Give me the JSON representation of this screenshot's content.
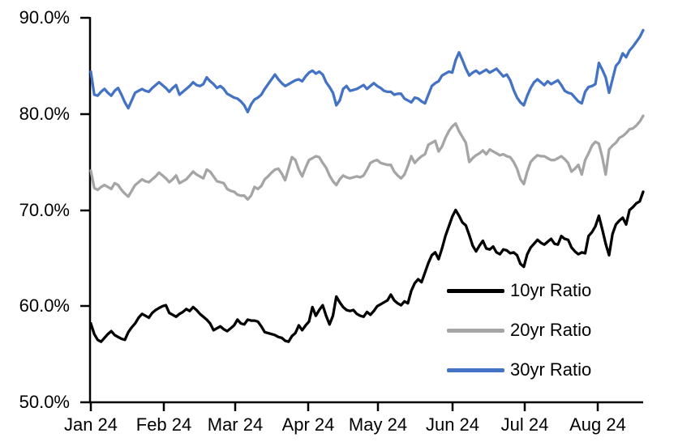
{
  "chart_data": {
    "type": "line",
    "title": "",
    "xlabel": "",
    "ylabel": "",
    "ylim": [
      50,
      90
    ],
    "y_tick_labels": [
      "90.0%",
      "80.0%",
      "70.0%",
      "60.0%",
      "50.0%"
    ],
    "x_tick_labels": [
      "Jan 24",
      "Feb 24",
      "Mar 24",
      "Apr 24",
      "May 24",
      "Jun 24",
      "Jul 24",
      "Aug 24"
    ],
    "grid": false,
    "legend_position": "inside-lower-right",
    "axis_color": "#000000",
    "series": [
      {
        "name": "10yr Ratio",
        "color": "#000000",
        "values": [
          58.2,
          57.1,
          56.5,
          56.3,
          56.7,
          57.1,
          57.4,
          57.0,
          56.8,
          56.6,
          56.5,
          57.3,
          57.8,
          58.2,
          58.8,
          59.2,
          59.0,
          58.8,
          59.3,
          59.6,
          59.8,
          60.0,
          60.1,
          59.3,
          59.1,
          58.9,
          59.2,
          59.4,
          59.7,
          59.5,
          59.9,
          59.6,
          59.2,
          58.9,
          58.6,
          58.2,
          57.5,
          57.7,
          57.9,
          57.6,
          57.4,
          57.7,
          58.0,
          58.6,
          58.2,
          58.1,
          58.6,
          58.5,
          58.5,
          58.4,
          57.9,
          57.3,
          57.2,
          57.1,
          57.0,
          56.8,
          56.7,
          56.4,
          56.3,
          56.9,
          57.2,
          58.0,
          57.5,
          58.0,
          58.4,
          59.9,
          59.0,
          59.6,
          60.1,
          59.0,
          58.1,
          59.0,
          61.0,
          60.4,
          59.9,
          59.6,
          59.5,
          59.6,
          59.2,
          59.0,
          58.9,
          59.4,
          59.1,
          59.5,
          60.0,
          60.2,
          60.4,
          60.6,
          61.2,
          60.6,
          60.3,
          60.1,
          60.5,
          60.3,
          61.6,
          62.4,
          62.8,
          62.5,
          63.5,
          64.5,
          65.3,
          65.6,
          64.9,
          66.0,
          67.3,
          68.3,
          69.3,
          70.0,
          69.4,
          68.7,
          68.4,
          67.4,
          66.3,
          65.7,
          66.3,
          66.8,
          66.0,
          65.9,
          66.2,
          65.6,
          65.4,
          65.9,
          65.8,
          65.5,
          65.6,
          65.3,
          64.4,
          64.1,
          65.4,
          66.1,
          66.5,
          66.9,
          66.6,
          66.4,
          66.7,
          67.0,
          66.5,
          66.4,
          67.3,
          67.0,
          66.9,
          66.1,
          65.7,
          65.4,
          65.6,
          65.5,
          67.3,
          67.7,
          68.3,
          69.4,
          68.0,
          66.5,
          65.3,
          67.5,
          68.5,
          68.9,
          69.2,
          68.5,
          70.0,
          70.3,
          70.7,
          70.9,
          71.9
        ]
      },
      {
        "name": "20yr Ratio",
        "color": "#A5A5A5",
        "values": [
          74.1,
          72.3,
          72.1,
          72.4,
          72.6,
          72.4,
          72.2,
          72.8,
          72.6,
          72.1,
          71.7,
          71.4,
          72.0,
          72.6,
          72.9,
          73.2,
          73.0,
          72.9,
          73.2,
          73.5,
          73.9,
          73.6,
          73.3,
          72.9,
          73.2,
          73.6,
          72.8,
          73.0,
          73.2,
          73.6,
          74.0,
          73.7,
          73.5,
          73.3,
          74.2,
          74.0,
          73.5,
          73.0,
          72.9,
          72.8,
          72.2,
          72.0,
          71.9,
          71.6,
          71.5,
          71.5,
          71.1,
          71.5,
          72.4,
          72.2,
          72.5,
          73.2,
          73.5,
          73.9,
          74.2,
          74.3,
          73.8,
          73.1,
          74.3,
          75.5,
          75.2,
          74.2,
          73.5,
          74.4,
          75.2,
          75.4,
          75.6,
          75.5,
          74.9,
          74.4,
          73.6,
          73.0,
          72.6,
          73.2,
          73.6,
          73.4,
          73.3,
          73.4,
          73.5,
          73.4,
          73.6,
          74.2,
          74.9,
          75.1,
          75.2,
          74.9,
          74.8,
          74.7,
          74.7,
          74.0,
          73.6,
          73.3,
          73.7,
          74.6,
          75.6,
          74.9,
          75.3,
          75.6,
          75.8,
          76.8,
          77.0,
          77.2,
          76.1,
          76.6,
          77.5,
          78.2,
          78.7,
          79.0,
          78.2,
          77.6,
          77.0,
          75.0,
          75.4,
          75.7,
          75.9,
          76.2,
          75.8,
          76.3,
          76.1,
          75.9,
          75.7,
          75.8,
          75.6,
          75.5,
          75.0,
          74.3,
          73.2,
          72.7,
          74.0,
          75.0,
          75.4,
          75.7,
          75.6,
          75.6,
          75.4,
          75.2,
          75.2,
          75.4,
          75.6,
          75.3,
          74.9,
          74.0,
          74.3,
          74.7,
          73.7,
          75.2,
          75.9,
          76.7,
          77.1,
          76.9,
          75.5,
          73.7,
          76.3,
          76.7,
          77.0,
          77.5,
          77.7,
          78.0,
          78.4,
          78.5,
          78.8,
          79.2,
          79.8
        ]
      },
      {
        "name": "30yr Ratio",
        "color": "#4472C4",
        "values": [
          84.4,
          82.0,
          81.9,
          82.3,
          82.6,
          82.2,
          81.9,
          82.4,
          82.7,
          82.0,
          81.2,
          80.6,
          81.4,
          82.2,
          82.4,
          82.6,
          82.4,
          82.3,
          82.7,
          83.0,
          83.3,
          83.0,
          82.7,
          82.3,
          82.7,
          83.0,
          82.0,
          82.3,
          82.6,
          82.9,
          83.3,
          83.0,
          82.9,
          83.1,
          83.8,
          83.4,
          83.1,
          82.7,
          82.9,
          82.6,
          82.1,
          81.9,
          81.7,
          81.6,
          81.3,
          80.9,
          80.2,
          81.0,
          81.5,
          81.7,
          82.0,
          82.6,
          83.1,
          83.6,
          84.1,
          83.6,
          83.2,
          82.9,
          83.1,
          83.3,
          83.5,
          83.6,
          83.4,
          83.9,
          84.3,
          84.5,
          84.2,
          84.4,
          84.1,
          83.3,
          82.8,
          82.2,
          80.9,
          81.4,
          82.6,
          82.9,
          82.4,
          82.5,
          82.6,
          82.8,
          83.0,
          82.6,
          82.9,
          83.2,
          82.9,
          82.7,
          82.4,
          82.3,
          82.3,
          82.0,
          82.1,
          82.1,
          81.6,
          81.4,
          81.2,
          81.7,
          81.6,
          81.3,
          81.1,
          82.0,
          82.9,
          83.2,
          83.4,
          84.0,
          84.2,
          84.4,
          84.3,
          85.6,
          86.4,
          85.6,
          84.7,
          84.0,
          84.3,
          84.5,
          84.2,
          84.4,
          84.6,
          84.3,
          84.5,
          84.7,
          84.3,
          83.9,
          84.1,
          83.5,
          82.5,
          81.7,
          81.2,
          80.9,
          81.9,
          82.7,
          83.3,
          83.6,
          83.3,
          83.0,
          83.4,
          83.1,
          83.3,
          83.5,
          83.0,
          82.4,
          82.2,
          82.1,
          81.7,
          81.3,
          81.1,
          82.3,
          82.8,
          82.9,
          83.1,
          85.3,
          84.6,
          83.8,
          82.2,
          83.6,
          85.0,
          85.4,
          86.3,
          85.9,
          86.6,
          87.0,
          87.5,
          88.0,
          88.7
        ]
      }
    ]
  }
}
